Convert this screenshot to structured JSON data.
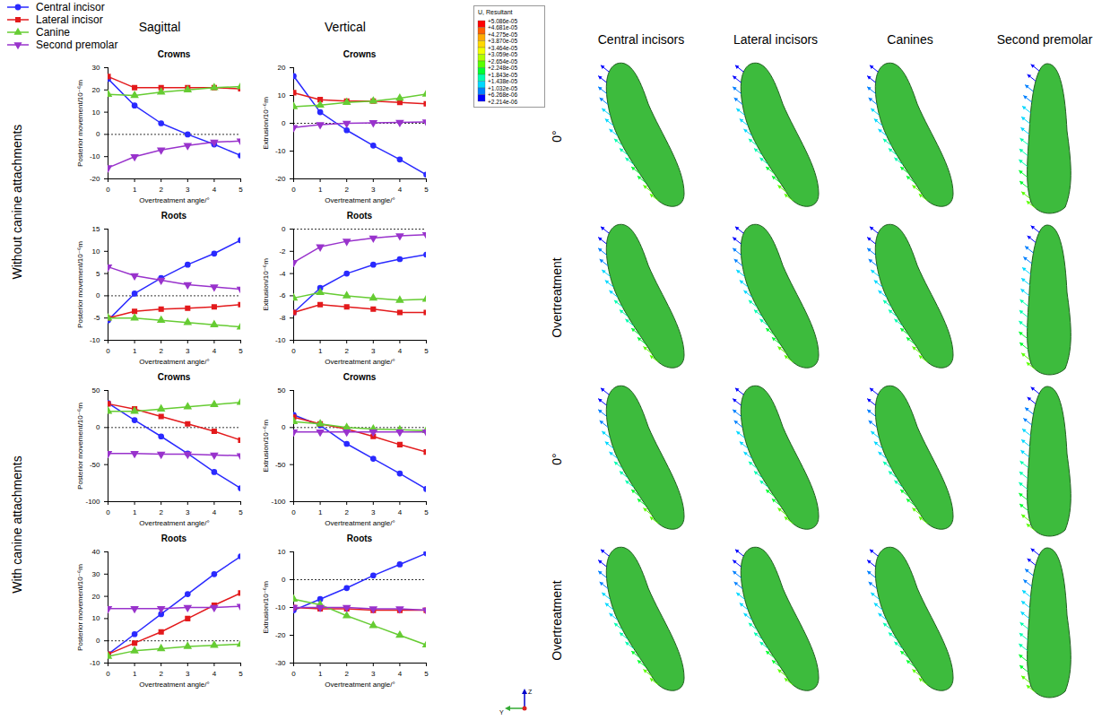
{
  "figure": {
    "row_groups": [
      "Without canine attachments",
      "With canine attachments"
    ],
    "columns": [
      "Sagittal",
      "Vertical"
    ],
    "image_columns": [
      "Central incisors",
      "Lateral incisors",
      "Canines",
      "Second premolar"
    ],
    "image_rows": [
      "0°",
      "Overtreatment",
      "0°",
      "Overtreatment"
    ],
    "colorbar": {
      "title": "U, Resultant",
      "ticks": [
        {
          "value": 5.086e-05,
          "label": "+5.086e-05"
        },
        {
          "value": 4.681e-05,
          "label": "+4.681e-05"
        },
        {
          "value": 4.275e-05,
          "label": "+4.275e-05"
        },
        {
          "value": 3.87e-05,
          "label": "+3.870e-05"
        },
        {
          "value": 3.464e-05,
          "label": "+3.464e-05"
        },
        {
          "value": 3.059e-05,
          "label": "+3.059e-05"
        },
        {
          "value": 2.654e-05,
          "label": "+2.654e-05"
        },
        {
          "value": 2.248e-05,
          "label": "+2.248e-05"
        },
        {
          "value": 1.843e-05,
          "label": "+1.843e-05"
        },
        {
          "value": 1.438e-05,
          "label": "+1.438e-05"
        },
        {
          "value": 1.032e-05,
          "label": "+1.032e-05"
        },
        {
          "value": 6.268e-06,
          "label": "+6.268e-06"
        },
        {
          "value": 2.214e-06,
          "label": "+2.214e-06"
        }
      ],
      "colors": [
        "#ff0000",
        "#ff6000",
        "#ffaa00",
        "#ffd800",
        "#f0ff00",
        "#b0ff00",
        "#5aff00",
        "#00ff30",
        "#00ffb0",
        "#00d8ff",
        "#0080ff",
        "#0000ff"
      ]
    },
    "axis_triad": [
      "Z",
      "Y"
    ]
  },
  "chart_data": [
    {
      "type": "line",
      "title": "Crowns",
      "legend": "top-left",
      "x_label": "Overtreatment angle/°",
      "y_label": "Posterior movement/10⁻⁶m",
      "x": [
        0,
        1,
        2,
        3,
        4,
        5
      ],
      "xlim": [
        0,
        5
      ],
      "xticks": [
        0,
        1,
        2,
        3,
        4,
        5
      ],
      "ylim": [
        -20,
        30
      ],
      "yticks": [
        -20,
        -10,
        0,
        10,
        20,
        30
      ],
      "series": [
        {
          "name": "Central incisor",
          "color": "#2a2aff",
          "marker": "circle",
          "values": [
            25,
            13,
            5,
            0,
            -4.5,
            -9.5
          ]
        },
        {
          "name": "Lateral incisor",
          "color": "#e31a1c",
          "marker": "square",
          "values": [
            26,
            21,
            21,
            21,
            21,
            20.5
          ]
        },
        {
          "name": "Canine",
          "color": "#66cc33",
          "marker": "triangle",
          "values": [
            18,
            17.5,
            19,
            20,
            21,
            21.5
          ]
        },
        {
          "name": "Second premolar",
          "color": "#9933cc",
          "marker": "triangle-down",
          "values": [
            -15,
            -10,
            -7,
            -5,
            -3.5,
            -3
          ]
        }
      ]
    },
    {
      "type": "line",
      "title": "Crowns",
      "x_label": "Overtreatment angle/°",
      "y_label": "Extrusion/10⁻⁶m",
      "x": [
        0,
        1,
        2,
        3,
        4,
        5
      ],
      "xlim": [
        0,
        5
      ],
      "xticks": [
        0,
        1,
        2,
        3,
        4,
        5
      ],
      "ylim": [
        -20,
        20
      ],
      "yticks": [
        -20,
        -10,
        0,
        10,
        20
      ],
      "series": [
        {
          "name": "Central incisor",
          "color": "#2a2aff",
          "marker": "circle",
          "values": [
            17,
            4,
            -2.5,
            -8,
            -13,
            -18.5
          ]
        },
        {
          "name": "Lateral incisor",
          "color": "#e31a1c",
          "marker": "square",
          "values": [
            11,
            8.5,
            8,
            8,
            7.5,
            7
          ]
        },
        {
          "name": "Canine",
          "color": "#66cc33",
          "marker": "triangle",
          "values": [
            6,
            6.5,
            7.5,
            8,
            9,
            10.5
          ]
        },
        {
          "name": "Second premolar",
          "color": "#9933cc",
          "marker": "triangle-down",
          "values": [
            -1.5,
            -0.5,
            0,
            0.2,
            0.3,
            0.5
          ]
        }
      ]
    },
    {
      "type": "line",
      "title": "Roots",
      "x_label": "Overtreatment angle/°",
      "y_label": "Posterior movement/10⁻⁶m",
      "x": [
        0,
        1,
        2,
        3,
        4,
        5
      ],
      "xlim": [
        0,
        5
      ],
      "xticks": [
        0,
        1,
        2,
        3,
        4,
        5
      ],
      "ylim": [
        -10,
        15
      ],
      "yticks": [
        -10,
        -5,
        0,
        5,
        10,
        15
      ],
      "series": [
        {
          "name": "Central incisor",
          "color": "#2a2aff",
          "marker": "circle",
          "values": [
            -5.5,
            0.5,
            4,
            7,
            9.5,
            12.5
          ]
        },
        {
          "name": "Lateral incisor",
          "color": "#e31a1c",
          "marker": "square",
          "values": [
            -5,
            -3.5,
            -3,
            -2.8,
            -2.5,
            -2
          ]
        },
        {
          "name": "Canine",
          "color": "#66cc33",
          "marker": "triangle",
          "values": [
            -5,
            -5,
            -5.5,
            -6,
            -6.5,
            -7
          ]
        },
        {
          "name": "Second premolar",
          "color": "#9933cc",
          "marker": "triangle-down",
          "values": [
            6.5,
            4.5,
            3.5,
            2.5,
            2,
            1.5
          ]
        }
      ]
    },
    {
      "type": "line",
      "title": "Roots",
      "x_label": "Overtreatment angle/°",
      "y_label": "Extrusion/10⁻⁶m",
      "x": [
        0,
        1,
        2,
        3,
        4,
        5
      ],
      "xlim": [
        0,
        5
      ],
      "xticks": [
        0,
        1,
        2,
        3,
        4,
        5
      ],
      "ylim": [
        -10,
        0
      ],
      "yticks": [
        -10,
        -8,
        -6,
        -4,
        -2,
        0
      ],
      "series": [
        {
          "name": "Central incisor",
          "color": "#2a2aff",
          "marker": "circle",
          "values": [
            -7.5,
            -5.3,
            -4,
            -3.2,
            -2.7,
            -2.3
          ]
        },
        {
          "name": "Lateral incisor",
          "color": "#e31a1c",
          "marker": "square",
          "values": [
            -7.5,
            -6.8,
            -7,
            -7.2,
            -7.5,
            -7.5
          ]
        },
        {
          "name": "Canine",
          "color": "#66cc33",
          "marker": "triangle",
          "values": [
            -6.2,
            -5.7,
            -6,
            -6.2,
            -6.4,
            -6.3
          ]
        },
        {
          "name": "Second premolar",
          "color": "#9933cc",
          "marker": "triangle-down",
          "values": [
            -3,
            -1.6,
            -1.1,
            -0.8,
            -0.6,
            -0.5
          ]
        }
      ]
    },
    {
      "type": "line",
      "title": "Crowns",
      "x_label": "Overtreatment angle/°",
      "y_label": "Posterior movement/10⁻⁶m",
      "x": [
        0,
        1,
        2,
        3,
        4,
        5
      ],
      "xlim": [
        0,
        5
      ],
      "xticks": [
        0,
        1,
        2,
        3,
        4,
        5
      ],
      "ylim": [
        -100,
        50
      ],
      "yticks": [
        -100,
        -50,
        0,
        50
      ],
      "series": [
        {
          "name": "Central incisor",
          "color": "#2a2aff",
          "marker": "circle",
          "values": [
            33,
            10,
            -12,
            -35,
            -60,
            -82
          ]
        },
        {
          "name": "Lateral incisor",
          "color": "#e31a1c",
          "marker": "square",
          "values": [
            32,
            25,
            15,
            5,
            -5,
            -17
          ]
        },
        {
          "name": "Canine",
          "color": "#66cc33",
          "marker": "triangle",
          "values": [
            22,
            22,
            25,
            28,
            31,
            34
          ]
        },
        {
          "name": "Second premolar",
          "color": "#9933cc",
          "marker": "triangle-down",
          "values": [
            -35,
            -35,
            -36,
            -36,
            -37,
            -38
          ]
        }
      ]
    },
    {
      "type": "line",
      "title": "Crowns",
      "x_label": "Overtreatment angle/°",
      "y_label": "Extrusion/10⁻⁶m",
      "x": [
        0,
        1,
        2,
        3,
        4,
        5
      ],
      "xlim": [
        0,
        5
      ],
      "xticks": [
        0,
        1,
        2,
        3,
        4,
        5
      ],
      "ylim": [
        -100,
        50
      ],
      "yticks": [
        -100,
        -50,
        0,
        50
      ],
      "series": [
        {
          "name": "Central incisor",
          "color": "#2a2aff",
          "marker": "circle",
          "values": [
            17,
            3,
            -22,
            -42,
            -62,
            -83
          ]
        },
        {
          "name": "Lateral incisor",
          "color": "#e31a1c",
          "marker": "square",
          "values": [
            14,
            5,
            -2,
            -12,
            -23,
            -33
          ]
        },
        {
          "name": "Canine",
          "color": "#66cc33",
          "marker": "triangle",
          "values": [
            8,
            5,
            0,
            -2,
            -3,
            -4
          ]
        },
        {
          "name": "Second premolar",
          "color": "#9933cc",
          "marker": "triangle-down",
          "values": [
            -6,
            -6,
            -6,
            -6,
            -6,
            -6
          ]
        }
      ]
    },
    {
      "type": "line",
      "title": "Roots",
      "x_label": "Overtreatment angle/°",
      "y_label": "Posterior movement/10⁻⁶m",
      "x": [
        0,
        1,
        2,
        3,
        4,
        5
      ],
      "xlim": [
        0,
        5
      ],
      "xticks": [
        0,
        1,
        2,
        3,
        4,
        5
      ],
      "ylim": [
        -10,
        40
      ],
      "yticks": [
        -10,
        0,
        10,
        20,
        30,
        40
      ],
      "series": [
        {
          "name": "Central incisor",
          "color": "#2a2aff",
          "marker": "circle",
          "values": [
            -6,
            3,
            12,
            21,
            30,
            38
          ]
        },
        {
          "name": "Lateral incisor",
          "color": "#e31a1c",
          "marker": "square",
          "values": [
            -6,
            -1,
            4,
            10,
            16,
            21.5
          ]
        },
        {
          "name": "Canine",
          "color": "#66cc33",
          "marker": "triangle",
          "values": [
            -7,
            -4.5,
            -3.5,
            -2.5,
            -2,
            -1.5
          ]
        },
        {
          "name": "Second premolar",
          "color": "#9933cc",
          "marker": "triangle-down",
          "values": [
            14.5,
            14.5,
            14.5,
            15,
            15,
            15.5
          ]
        }
      ]
    },
    {
      "type": "line",
      "title": "Roots",
      "x_label": "Overtreatment angle/°",
      "y_label": "Extrusion/10⁻⁶m",
      "x": [
        0,
        1,
        2,
        3,
        4,
        5
      ],
      "xlim": [
        0,
        5
      ],
      "xticks": [
        0,
        1,
        2,
        3,
        4,
        5
      ],
      "ylim": [
        -30,
        10
      ],
      "yticks": [
        -30,
        -20,
        -10,
        0,
        10
      ],
      "series": [
        {
          "name": "Central incisor",
          "color": "#2a2aff",
          "marker": "circle",
          "values": [
            -11,
            -7,
            -3,
            1.5,
            5.5,
            9.5
          ]
        },
        {
          "name": "Lateral incisor",
          "color": "#e31a1c",
          "marker": "square",
          "values": [
            -10,
            -10.5,
            -10.5,
            -11,
            -11,
            -11
          ]
        },
        {
          "name": "Canine",
          "color": "#66cc33",
          "marker": "triangle",
          "values": [
            -7,
            -9,
            -13,
            -16.5,
            -20,
            -23.5
          ]
        },
        {
          "name": "Second premolar",
          "color": "#9933cc",
          "marker": "triangle-down",
          "values": [
            -10,
            -10,
            -10,
            -10.5,
            -10.5,
            -11
          ]
        }
      ]
    }
  ]
}
